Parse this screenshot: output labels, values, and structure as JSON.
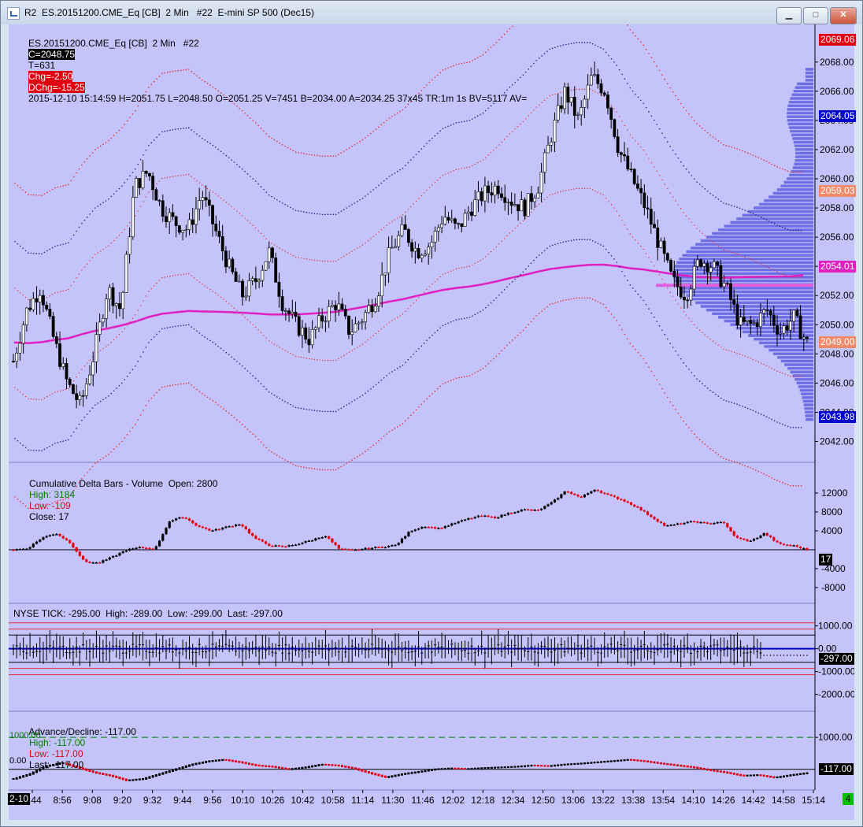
{
  "window": {
    "title": "R2  ES.20151200.CME_Eq [CB]  2 Min   #22  E-mini SP 500 (Dec15)",
    "buttons": [
      "▁",
      "□",
      "✕"
    ]
  },
  "header": {
    "symbol": "ES.20151200.CME_Eq [CB]  2 Min   #22",
    "close": "C=2048.75",
    "trades": "T=631",
    "chg": "Chg=-2.50",
    "dchg": "DChg=-15.25",
    "rest": "2015-12-10 15:14:59 H=2051.75 L=2048.50 O=2051.25 V=7451 B=2034.00 A=2034.25 37x45 TR:1m 1s BV=5117 AV="
  },
  "price_tags": [
    {
      "label": "2069.06",
      "bg": "#e0000f",
      "fg": "#ffffff"
    },
    {
      "label": "2064.05",
      "bg": "#0000d0",
      "fg": "#ffffff"
    },
    {
      "label": "2059.03",
      "bg": "#f08a6a",
      "fg": "#ffffff"
    },
    {
      "label": "2054.01",
      "bg": "#e020c0",
      "fg": "#ffffff"
    },
    {
      "label": "2049.00",
      "bg": "#f08a6a",
      "fg": "#ffffff"
    },
    {
      "label": "2043.98",
      "bg": "#0000d0",
      "fg": "#ffffff"
    }
  ],
  "panels": {
    "delta": {
      "title": "Cumulative Delta Bars - Volume  Open: 2800",
      "high": "High: 3184",
      "low": "Low: -109",
      "close": "Close: 17",
      "last_tag": "17"
    },
    "tick": {
      "title": "NYSE TICK: -295.00  High: -289.00  Low: -299.00  Last: -297.00",
      "last_tag": "-297.00"
    },
    "ad": {
      "title": "Advance/Decline: -117.00",
      "high": "High: -117.00",
      "low": "Low: -117.00",
      "last": "Last: -117.00",
      "last_tag": "-117.00",
      "line_1000_label": "1000.00",
      "zero_label": "0.00"
    }
  },
  "time_axis": {
    "first_label": "2-10",
    "corner_badge": "4"
  },
  "colors": {
    "background": "#c4c4fb",
    "up_candle": "#ffffff",
    "down_candle": "#000000",
    "vwap": "#e020c0",
    "bands": "#e03030",
    "outer_bands": "#202080",
    "volume_profile": "#5050e0",
    "delta_up": "#000000",
    "delta_down": "#e0000f",
    "tick_mid": "#0000d0",
    "high_color": "#008000",
    "low_color": "#e0000f"
  },
  "chart_data": [
    {
      "type": "candlestick",
      "title": "ES.20151200.CME_Eq [CB] 2 Min",
      "x": [
        "8:44",
        "8:56",
        "9:08",
        "9:20",
        "9:32",
        "9:44",
        "9:56",
        "10:10",
        "10:26",
        "10:42",
        "10:58",
        "11:14",
        "11:30",
        "11:46",
        "12:02",
        "12:18",
        "12:34",
        "12:50",
        "13:06",
        "13:22",
        "13:38",
        "13:54",
        "14:10",
        "14:26",
        "14:42",
        "14:58",
        "15:14"
      ],
      "y_ticks": [
        2042,
        2044,
        2046,
        2048,
        2050,
        2052,
        2054,
        2056,
        2058,
        2060,
        2062,
        2064,
        2066,
        2068
      ],
      "ylim": [
        2041,
        2069.5
      ],
      "close_path": [
        2047.5,
        2051,
        2052.5,
        2049,
        2046,
        2044.5,
        2048,
        2052.5,
        2051,
        2059.5,
        2060.5,
        2058,
        2057,
        2056.5,
        2059,
        2056.5,
        2054,
        2052,
        2053,
        2055,
        2051.5,
        2050,
        2049,
        2050.5,
        2051.5,
        2049.5,
        2050.5,
        2052,
        2055,
        2056.5,
        2055,
        2055.5,
        2057.5,
        2056.5,
        2058,
        2059,
        2059.5,
        2058.5,
        2058,
        2059.5,
        2063,
        2066,
        2064,
        2067,
        2066,
        2062,
        2060,
        2058,
        2055.5,
        2053,
        2052,
        2054.5,
        2054,
        2052.5,
        2050,
        2050,
        2051,
        2049.5,
        2050.5,
        2048.75
      ],
      "vwap_start": 2049.5,
      "vwap_end": 2054.0
    },
    {
      "type": "bar",
      "title": "Cumulative Delta Bars - Volume",
      "open": 2800,
      "high": 3184,
      "low": -109,
      "close": 17,
      "y_ticks": [
        -8000,
        -4000,
        4000,
        8000,
        12000
      ],
      "ylim": [
        -10500,
        14500
      ],
      "values": [
        0,
        300,
        2500,
        3500,
        1500,
        -2500,
        -2800,
        -1500,
        0,
        500,
        200,
        6000,
        7000,
        5000,
        4000,
        4800,
        5500,
        2500,
        1000,
        600,
        1200,
        2000,
        3000,
        100,
        -100,
        300,
        600,
        1000,
        4000,
        5000,
        4500,
        5500,
        6500,
        7200,
        6800,
        7800,
        8500,
        8300,
        10000,
        12500,
        11000,
        12800,
        11500,
        10500,
        9000,
        7000,
        5000,
        5500,
        6000,
        5500,
        6000,
        2500,
        1800,
        3500,
        1200,
        900,
        17
      ]
    },
    {
      "type": "bar",
      "title": "NYSE TICK",
      "high": -289.0,
      "low": -299.0,
      "last": -297.0,
      "y_ticks": [
        1000,
        0,
        -1000,
        -2000
      ],
      "y_tick_labels": [
        "1000.00",
        "0.00",
        "-1000.00",
        "-2000.00"
      ],
      "ylim": [
        -2600,
        1300
      ],
      "reference_lines": [
        1000,
        -1000,
        600,
        -600
      ]
    },
    {
      "type": "line",
      "title": "Advance/Decline",
      "high": -117.0,
      "low": -117.0,
      "last": -117.0,
      "y_ticks": [
        1000
      ],
      "y_tick_labels": [
        "1000.00"
      ],
      "ylim": [
        -400,
        1250
      ],
      "values": [
        -300,
        -150,
        100,
        200,
        50,
        -100,
        -200,
        -350,
        -300,
        -150,
        0,
        150,
        250,
        300,
        220,
        120,
        80,
        0,
        60,
        150,
        120,
        30,
        -120,
        -250,
        -150,
        -80,
        0,
        30,
        10,
        40,
        60,
        80,
        120,
        100,
        150,
        180,
        220,
        260,
        300,
        250,
        180,
        120,
        60,
        -30,
        -100,
        -200,
        -180,
        -260,
        -180,
        -117
      ]
    }
  ]
}
